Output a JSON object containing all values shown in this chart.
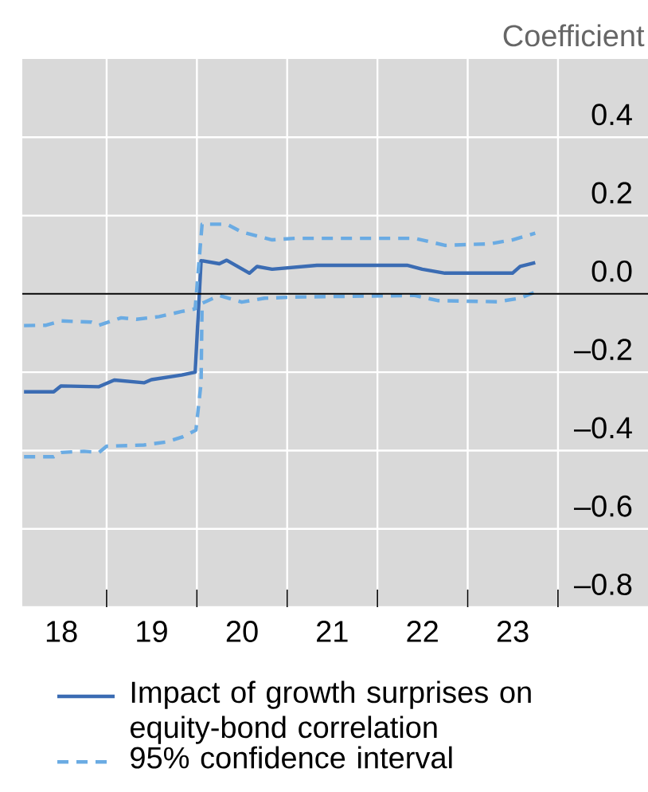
{
  "chart_data": {
    "type": "line",
    "ylabel": "Coefficient",
    "xlim": [
      "2018-01-25",
      "2024-12-31"
    ],
    "ylim": [
      -0.8,
      0.6
    ],
    "xticks": [
      {
        "value": "2019-01-01",
        "label": null
      },
      {
        "value": "2020-01-01",
        "label": null
      },
      {
        "value": "2021-01-01",
        "label": null
      },
      {
        "value": "2022-01-01",
        "label": null
      },
      {
        "value": "2023-01-01",
        "label": null
      },
      {
        "value": "2024-01-01",
        "label": null
      },
      {
        "value": "2018-07-02",
        "label": "18"
      },
      {
        "value": "2019-07-02",
        "label": "19"
      },
      {
        "value": "2020-07-02",
        "label": "20"
      },
      {
        "value": "2021-07-02",
        "label": "21"
      },
      {
        "value": "2022-07-02",
        "label": "22"
      },
      {
        "value": "2023-07-02",
        "label": "23"
      }
    ],
    "yticks": [
      {
        "value": -0.8,
        "label": "–0.8"
      },
      {
        "value": -0.6,
        "label": "–0.6"
      },
      {
        "value": -0.4,
        "label": "–0.4"
      },
      {
        "value": -0.2,
        "label": "–0.2"
      },
      {
        "value": 0,
        "label": "0.0"
      },
      {
        "value": 0.2,
        "label": "0.2"
      },
      {
        "value": 0.4,
        "label": "0.4"
      }
    ],
    "grid": true,
    "legend": "bottom",
    "marker": "none",
    "ref_lines": [
      {
        "axis": "y",
        "value": 0,
        "label": null,
        "color": "#000000"
      }
    ],
    "series": [
      {
        "name": "Impact of growth surprises on equity-bond correlation",
        "color": "#3b6cb3",
        "line_style": "solid",
        "x": [
          "2018-02",
          "2018-06",
          "2018-07",
          "2018-12",
          "2019-02",
          "2019-06",
          "2019-07",
          "2019-11",
          "2019-12-25",
          "2020-01-18",
          "2020-04",
          "2020-05",
          "2020-08",
          "2020-09",
          "2020-11",
          "2021-05",
          "2022-05",
          "2022-07",
          "2022-10",
          "2023-02",
          "2023-07",
          "2023-08",
          "2023-10"
        ],
        "values": [
          -0.25,
          -0.25,
          -0.235,
          -0.237,
          -0.22,
          -0.227,
          -0.219,
          -0.207,
          -0.2,
          0.085,
          0.077,
          0.086,
          0.053,
          0.07,
          0.063,
          0.073,
          0.073,
          0.063,
          0.053,
          0.053,
          0.053,
          0.07,
          0.08
        ]
      },
      {
        "name": "95% confidence interval",
        "color": "#6aabe3",
        "line_style": "dashed",
        "x": [
          "2018-02",
          "2018-05",
          "2018-07",
          "2018-11",
          "2018-12",
          "2019-03",
          "2019-05",
          "2019-08",
          "2019-11",
          "2019-12-25",
          "2020-01-22",
          "2020-05",
          "2020-07",
          "2020-11",
          "2021-02",
          "2022-06",
          "2022-10",
          "2023-04",
          "2023-07",
          "2023-10"
        ],
        "values": [
          -0.081,
          -0.08,
          -0.069,
          -0.072,
          -0.08,
          -0.061,
          -0.065,
          -0.058,
          -0.045,
          -0.038,
          0.178,
          0.178,
          0.158,
          0.138,
          0.142,
          0.142,
          0.124,
          0.128,
          0.138,
          0.155
        ]
      },
      {
        "color": "#6aabe3",
        "line_style": "dashed",
        "x": [
          "2018-02",
          "2018-06",
          "2018-07",
          "2018-10",
          "2018-12",
          "2019-01",
          "2019-06",
          "2019-09",
          "2019-11",
          "2019-12-28",
          "2020-01-18",
          "2020-01-22",
          "2020-04",
          "2020-07",
          "2020-10",
          "2021-02",
          "2022-06",
          "2022-09",
          "2023-05",
          "2023-08",
          "2023-10"
        ],
        "values": [
          -0.416,
          -0.416,
          -0.405,
          -0.402,
          -0.405,
          -0.389,
          -0.386,
          -0.378,
          -0.366,
          -0.348,
          -0.227,
          -0.024,
          -0.004,
          -0.021,
          -0.011,
          -0.008,
          -0.004,
          -0.017,
          -0.02,
          -0.011,
          0.005
        ]
      }
    ]
  }
}
